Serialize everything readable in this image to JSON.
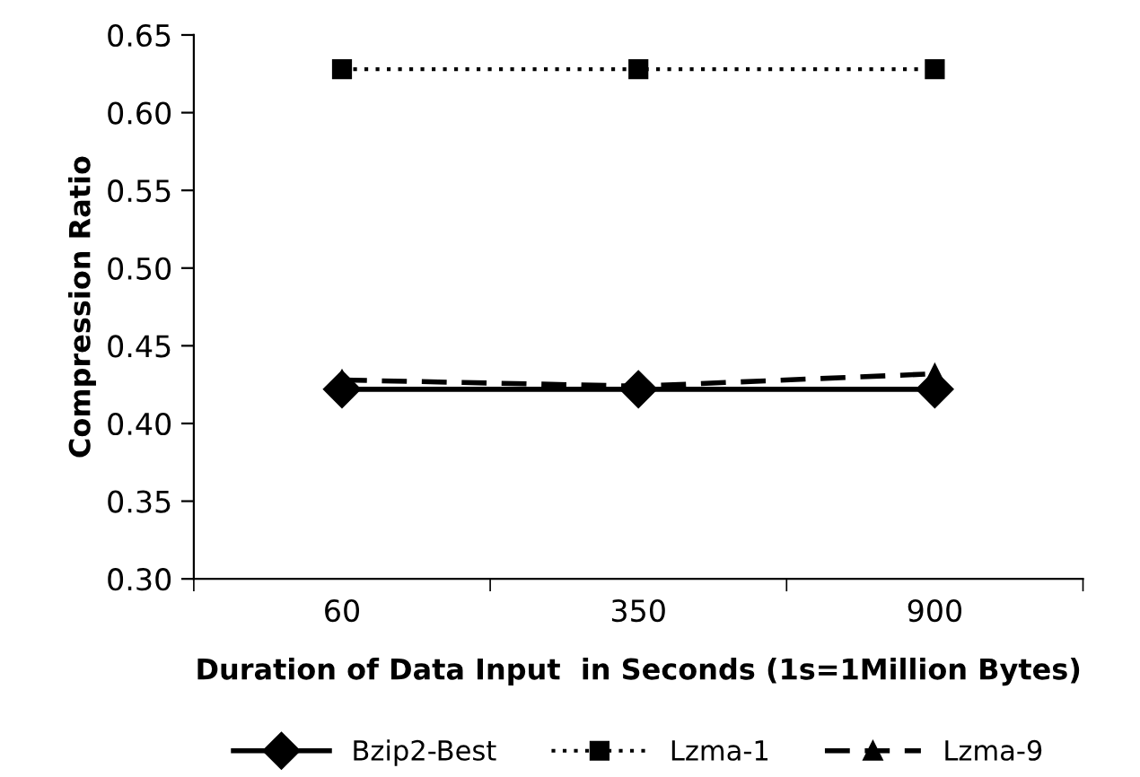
{
  "chart_data": {
    "type": "line",
    "xlabel": "Duration of Data Input  in Seconds (1s=1Million Bytes)",
    "ylabel": "Compression Ratio",
    "categories": [
      "60",
      "350",
      "900"
    ],
    "ylim": [
      0.3,
      0.65
    ],
    "yticks": [
      {
        "value": 0.3,
        "label": "0.30"
      },
      {
        "value": 0.35,
        "label": "0.35"
      },
      {
        "value": 0.4,
        "label": "0.40"
      },
      {
        "value": 0.45,
        "label": "0.45"
      },
      {
        "value": 0.5,
        "label": "0.50"
      },
      {
        "value": 0.55,
        "label": "0.55"
      },
      {
        "value": 0.6,
        "label": "0.60"
      },
      {
        "value": 0.65,
        "label": "0.65"
      }
    ],
    "grid": false,
    "legend": "bottom",
    "series": [
      {
        "name": "Bzip2-Best",
        "color": "#000000",
        "marker": "diamond",
        "line_style": "solid",
        "values": [
          0.422,
          0.422,
          0.422
        ]
      },
      {
        "name": "Lzma-1",
        "color": "#000000",
        "marker": "square",
        "line_style": "dotted",
        "values": [
          0.628,
          0.628,
          0.628
        ]
      },
      {
        "name": "Lzma-9",
        "color": "#000000",
        "marker": "triangle",
        "line_style": "dashed",
        "values": [
          0.428,
          0.424,
          0.432
        ]
      }
    ]
  }
}
